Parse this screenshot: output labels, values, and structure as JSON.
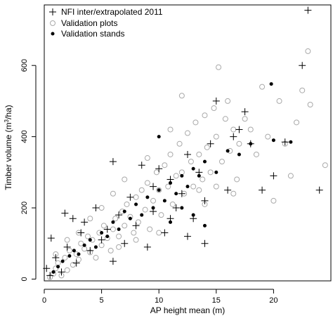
{
  "chart_data": {
    "type": "scatter",
    "xlabel": "AP height mean (m)",
    "ylabel_main": "Timber volume (m",
    "ylabel_sup": "3",
    "ylabel_tail": "/ha)",
    "xlim": [
      0,
      25
    ],
    "ylim": [
      -5,
      770
    ],
    "x_ticks": [
      0,
      5,
      10,
      15,
      20
    ],
    "y_ticks": [
      0,
      200,
      400,
      600
    ],
    "legend_position": "top-left",
    "colors": {
      "plots": "#a9a9a9",
      "stands": "#000000",
      "nfi": "#000000"
    },
    "legend": [
      {
        "key": "nfi",
        "label": "NFI inter/extrapolated 2011",
        "marker": "plus"
      },
      {
        "key": "plots",
        "label": "Validation plots",
        "marker": "open-circle"
      },
      {
        "key": "stands",
        "label": "Validation stands",
        "marker": "filled-dot"
      }
    ],
    "series": [
      {
        "name": "Validation plots",
        "marker": "open-circle",
        "points": [
          [
            0.5,
            5
          ],
          [
            0.8,
            15
          ],
          [
            1.0,
            30
          ],
          [
            1.2,
            45
          ],
          [
            1.5,
            10
          ],
          [
            1.8,
            60
          ],
          [
            2.0,
            25
          ],
          [
            2.2,
            80
          ],
          [
            2.5,
            40
          ],
          [
            2.8,
            70
          ],
          [
            3.0,
            55
          ],
          [
            3.2,
            100
          ],
          [
            3.5,
            85
          ],
          [
            3.8,
            120
          ],
          [
            4.0,
            75
          ],
          [
            4.2,
            110
          ],
          [
            4.5,
            60
          ],
          [
            4.8,
            130
          ],
          [
            5.0,
            95
          ],
          [
            5.2,
            150
          ],
          [
            5.5,
            115
          ],
          [
            5.8,
            80
          ],
          [
            6.0,
            140
          ],
          [
            6.2,
            170
          ],
          [
            6.5,
            120
          ],
          [
            6.8,
            190
          ],
          [
            7.0,
            150
          ],
          [
            7.2,
            210
          ],
          [
            7.5,
            175
          ],
          [
            7.8,
            130
          ],
          [
            8.0,
            230
          ],
          [
            8.2,
            160
          ],
          [
            8.5,
            250
          ],
          [
            8.8,
            195
          ],
          [
            9.0,
            270
          ],
          [
            9.2,
            140
          ],
          [
            9.5,
            220
          ],
          [
            9.8,
            300
          ],
          [
            10.0,
            250
          ],
          [
            10.2,
            180
          ],
          [
            10.5,
            320
          ],
          [
            10.8,
            260
          ],
          [
            11.0,
            350
          ],
          [
            11.2,
            210
          ],
          [
            11.5,
            290
          ],
          [
            11.8,
            380
          ],
          [
            12.0,
            300
          ],
          [
            12.2,
            240
          ],
          [
            12.5,
            410
          ],
          [
            12.8,
            330
          ],
          [
            13.0,
            260
          ],
          [
            13.2,
            440
          ],
          [
            13.5,
            350
          ],
          [
            13.8,
            280
          ],
          [
            14.0,
            460
          ],
          [
            14.2,
            370
          ],
          [
            14.5,
            300
          ],
          [
            14.8,
            480
          ],
          [
            15.0,
            400
          ],
          [
            15.2,
            595
          ],
          [
            15.5,
            330
          ],
          [
            15.8,
            450
          ],
          [
            16.0,
            500
          ],
          [
            16.2,
            360
          ],
          [
            16.5,
            420
          ],
          [
            16.8,
            280
          ],
          [
            17.0,
            380
          ],
          [
            17.5,
            450
          ],
          [
            18.0,
            420
          ],
          [
            18.5,
            350
          ],
          [
            19.0,
            540
          ],
          [
            19.5,
            400
          ],
          [
            20.0,
            220
          ],
          [
            20.5,
            500
          ],
          [
            21.0,
            380
          ],
          [
            21.5,
            290
          ],
          [
            22.0,
            440
          ],
          [
            22.5,
            530
          ],
          [
            23.0,
            640
          ],
          [
            23.2,
            490
          ],
          [
            24.5,
            320
          ],
          [
            12.0,
            515
          ],
          [
            7.0,
            280
          ],
          [
            6.0,
            240
          ],
          [
            5.0,
            200
          ],
          [
            4.0,
            170
          ],
          [
            3.0,
            130
          ],
          [
            2.0,
            110
          ],
          [
            1.0,
            70
          ],
          [
            11.0,
            420
          ],
          [
            9.0,
            340
          ],
          [
            13.5,
            250
          ],
          [
            16.5,
            240
          ],
          [
            15.0,
            260
          ],
          [
            10.0,
            130
          ],
          [
            8.0,
            110
          ],
          [
            6.5,
            90
          ],
          [
            14.0,
            210
          ]
        ]
      },
      {
        "name": "Validation stands",
        "marker": "filled-dot",
        "points": [
          [
            0.8,
            20
          ],
          [
            1.2,
            35
          ],
          [
            1.6,
            50
          ],
          [
            2.2,
            65
          ],
          [
            2.6,
            80
          ],
          [
            3.0,
            70
          ],
          [
            3.5,
            95
          ],
          [
            4.0,
            110
          ],
          [
            4.5,
            90
          ],
          [
            5.0,
            130
          ],
          [
            5.5,
            120
          ],
          [
            6.0,
            160
          ],
          [
            6.5,
            140
          ],
          [
            7.0,
            190
          ],
          [
            7.5,
            170
          ],
          [
            8.0,
            210
          ],
          [
            8.5,
            180
          ],
          [
            9.0,
            230
          ],
          [
            9.5,
            200
          ],
          [
            10.0,
            250
          ],
          [
            10.5,
            220
          ],
          [
            11.0,
            270
          ],
          [
            11.5,
            240
          ],
          [
            12.0,
            290
          ],
          [
            12.5,
            260
          ],
          [
            13.0,
            310
          ],
          [
            13.5,
            290
          ],
          [
            14.0,
            330
          ],
          [
            15.0,
            300
          ],
          [
            16.0,
            360
          ],
          [
            17.0,
            350
          ],
          [
            18.0,
            380
          ],
          [
            20.0,
            390
          ],
          [
            21.5,
            385
          ],
          [
            19.8,
            548
          ],
          [
            10.0,
            400
          ],
          [
            11.0,
            160
          ],
          [
            12.0,
            200
          ],
          [
            13.0,
            180
          ],
          [
            14.0,
            150
          ]
        ]
      },
      {
        "name": "NFI inter/extrapolated 2011",
        "marker": "plus",
        "points": [
          [
            0.2,
            30
          ],
          [
            0.5,
            10
          ],
          [
            0.6,
            115
          ],
          [
            1.0,
            60
          ],
          [
            1.5,
            20
          ],
          [
            1.8,
            185
          ],
          [
            2.0,
            90
          ],
          [
            2.5,
            170
          ],
          [
            2.8,
            45
          ],
          [
            3.2,
            130
          ],
          [
            3.5,
            160
          ],
          [
            4.0,
            80
          ],
          [
            4.5,
            200
          ],
          [
            5.0,
            110
          ],
          [
            5.5,
            140
          ],
          [
            6.0,
            50
          ],
          [
            6.5,
            180
          ],
          [
            7.0,
            100
          ],
          [
            7.5,
            230
          ],
          [
            8.0,
            150
          ],
          [
            8.5,
            320
          ],
          [
            9.0,
            90
          ],
          [
            9.5,
            260
          ],
          [
            10.0,
            310
          ],
          [
            10.5,
            130
          ],
          [
            11.0,
            280
          ],
          [
            11.5,
            200
          ],
          [
            12.0,
            240
          ],
          [
            12.5,
            350
          ],
          [
            13.0,
            170
          ],
          [
            13.5,
            300
          ],
          [
            14.0,
            220
          ],
          [
            14.5,
            380
          ],
          [
            15.0,
            500
          ],
          [
            16.0,
            250
          ],
          [
            16.5,
            400
          ],
          [
            17.0,
            420
          ],
          [
            17.5,
            470
          ],
          [
            18.0,
            380
          ],
          [
            19.0,
            250
          ],
          [
            20.0,
            290
          ],
          [
            21.0,
            385
          ],
          [
            22.5,
            600
          ],
          [
            23.0,
            755
          ],
          [
            24.0,
            250
          ],
          [
            11.0,
            170
          ],
          [
            12.5,
            120
          ],
          [
            9.5,
            190
          ],
          [
            14.0,
            100
          ],
          [
            6.0,
            330
          ]
        ]
      }
    ]
  }
}
